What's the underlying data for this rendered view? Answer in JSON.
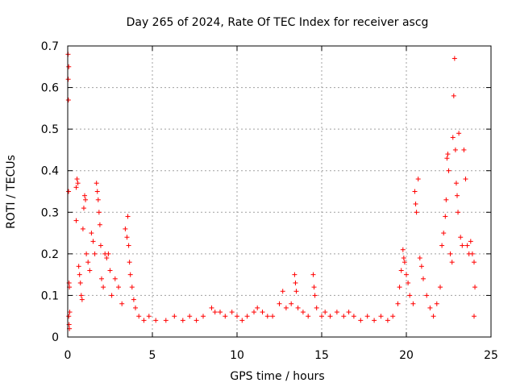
{
  "chart_data": {
    "type": "scatter",
    "title": "Day 265 of 2024, Rate Of TEC Index for receiver ascg",
    "xlabel": "GPS time / hours",
    "ylabel": "ROTI / TECUs",
    "xlim": [
      0,
      25
    ],
    "ylim": [
      0,
      0.7
    ],
    "x_ticks": [
      "0",
      "5",
      "10",
      "15",
      "20",
      "25"
    ],
    "y_ticks": [
      "0",
      "0.1",
      "0.2",
      "0.3",
      "0.4",
      "0.5",
      "0.6",
      "0.7"
    ],
    "grid": true,
    "marker": "plus",
    "colors": {
      "points": "#ff0000",
      "grid": "#a0a0a0",
      "axes": "#000000"
    },
    "series": [
      {
        "points": [
          [
            0.02,
            0.68
          ],
          [
            0.03,
            0.62
          ],
          [
            0.04,
            0.57
          ],
          [
            0.06,
            0.65
          ],
          [
            0.05,
            0.35
          ],
          [
            0.08,
            0.13
          ],
          [
            0.1,
            0.12
          ],
          [
            0.06,
            0.05
          ],
          [
            0.08,
            0.03
          ],
          [
            0.1,
            0.02
          ],
          [
            0.12,
            0.06
          ],
          [
            0.5,
            0.36
          ],
          [
            0.55,
            0.38
          ],
          [
            0.6,
            0.37
          ],
          [
            0.5,
            0.28
          ],
          [
            0.65,
            0.17
          ],
          [
            0.7,
            0.15
          ],
          [
            0.75,
            0.13
          ],
          [
            0.8,
            0.1
          ],
          [
            0.85,
            0.09
          ],
          [
            0.9,
            0.26
          ],
          [
            0.95,
            0.31
          ],
          [
            1.0,
            0.34
          ],
          [
            1.05,
            0.33
          ],
          [
            1.1,
            0.2
          ],
          [
            1.2,
            0.18
          ],
          [
            1.3,
            0.16
          ],
          [
            1.4,
            0.25
          ],
          [
            1.5,
            0.23
          ],
          [
            1.6,
            0.2
          ],
          [
            1.7,
            0.37
          ],
          [
            1.75,
            0.35
          ],
          [
            1.8,
            0.33
          ],
          [
            1.85,
            0.3
          ],
          [
            1.9,
            0.27
          ],
          [
            1.95,
            0.22
          ],
          [
            2.0,
            0.14
          ],
          [
            2.1,
            0.12
          ],
          [
            2.2,
            0.2
          ],
          [
            2.3,
            0.19
          ],
          [
            2.4,
            0.2
          ],
          [
            2.5,
            0.16
          ],
          [
            2.6,
            0.1
          ],
          [
            2.8,
            0.14
          ],
          [
            3.0,
            0.12
          ],
          [
            3.2,
            0.08
          ],
          [
            3.4,
            0.26
          ],
          [
            3.5,
            0.24
          ],
          [
            3.55,
            0.29
          ],
          [
            3.6,
            0.22
          ],
          [
            3.65,
            0.18
          ],
          [
            3.7,
            0.15
          ],
          [
            3.8,
            0.12
          ],
          [
            3.9,
            0.09
          ],
          [
            4.0,
            0.07
          ],
          [
            4.2,
            0.05
          ],
          [
            4.5,
            0.04
          ],
          [
            4.8,
            0.05
          ],
          [
            5.2,
            0.04
          ],
          [
            5.8,
            0.04
          ],
          [
            6.3,
            0.05
          ],
          [
            6.8,
            0.04
          ],
          [
            7.2,
            0.05
          ],
          [
            7.6,
            0.04
          ],
          [
            8.0,
            0.05
          ],
          [
            8.5,
            0.07
          ],
          [
            8.7,
            0.06
          ],
          [
            9.0,
            0.06
          ],
          [
            9.3,
            0.05
          ],
          [
            9.7,
            0.06
          ],
          [
            10.0,
            0.05
          ],
          [
            10.3,
            0.04
          ],
          [
            10.6,
            0.05
          ],
          [
            11.0,
            0.06
          ],
          [
            11.2,
            0.07
          ],
          [
            11.5,
            0.06
          ],
          [
            11.8,
            0.05
          ],
          [
            12.1,
            0.05
          ],
          [
            12.5,
            0.08
          ],
          [
            12.7,
            0.11
          ],
          [
            12.9,
            0.07
          ],
          [
            13.2,
            0.08
          ],
          [
            13.4,
            0.15
          ],
          [
            13.45,
            0.13
          ],
          [
            13.5,
            0.11
          ],
          [
            13.6,
            0.07
          ],
          [
            13.9,
            0.06
          ],
          [
            14.2,
            0.05
          ],
          [
            14.5,
            0.15
          ],
          [
            14.55,
            0.12
          ],
          [
            14.6,
            0.1
          ],
          [
            14.7,
            0.07
          ],
          [
            15.0,
            0.05
          ],
          [
            15.2,
            0.06
          ],
          [
            15.5,
            0.05
          ],
          [
            15.9,
            0.06
          ],
          [
            16.3,
            0.05
          ],
          [
            16.6,
            0.06
          ],
          [
            16.9,
            0.05
          ],
          [
            17.3,
            0.04
          ],
          [
            17.7,
            0.05
          ],
          [
            18.1,
            0.04
          ],
          [
            18.5,
            0.05
          ],
          [
            18.9,
            0.04
          ],
          [
            19.2,
            0.05
          ],
          [
            19.5,
            0.08
          ],
          [
            19.6,
            0.12
          ],
          [
            19.7,
            0.16
          ],
          [
            19.8,
            0.21
          ],
          [
            19.85,
            0.19
          ],
          [
            19.9,
            0.18
          ],
          [
            20.0,
            0.15
          ],
          [
            20.1,
            0.13
          ],
          [
            20.2,
            0.1
          ],
          [
            20.4,
            0.08
          ],
          [
            20.5,
            0.35
          ],
          [
            20.55,
            0.32
          ],
          [
            20.6,
            0.3
          ],
          [
            20.7,
            0.38
          ],
          [
            20.8,
            0.19
          ],
          [
            20.9,
            0.17
          ],
          [
            21.0,
            0.14
          ],
          [
            21.2,
            0.1
          ],
          [
            21.4,
            0.07
          ],
          [
            21.6,
            0.05
          ],
          [
            21.8,
            0.08
          ],
          [
            22.0,
            0.12
          ],
          [
            22.1,
            0.22
          ],
          [
            22.2,
            0.25
          ],
          [
            22.3,
            0.29
          ],
          [
            22.35,
            0.33
          ],
          [
            22.4,
            0.43
          ],
          [
            22.45,
            0.44
          ],
          [
            22.5,
            0.4
          ],
          [
            22.6,
            0.2
          ],
          [
            22.7,
            0.18
          ],
          [
            22.75,
            0.48
          ],
          [
            22.8,
            0.58
          ],
          [
            22.85,
            0.67
          ],
          [
            22.9,
            0.45
          ],
          [
            22.95,
            0.37
          ],
          [
            23.0,
            0.34
          ],
          [
            23.05,
            0.3
          ],
          [
            23.1,
            0.49
          ],
          [
            23.2,
            0.24
          ],
          [
            23.3,
            0.22
          ],
          [
            23.4,
            0.45
          ],
          [
            23.5,
            0.38
          ],
          [
            23.6,
            0.22
          ],
          [
            23.7,
            0.2
          ],
          [
            23.8,
            0.23
          ],
          [
            23.9,
            0.2
          ],
          [
            24.0,
            0.18
          ],
          [
            24.05,
            0.12
          ],
          [
            24.0,
            0.05
          ]
        ]
      }
    ]
  }
}
